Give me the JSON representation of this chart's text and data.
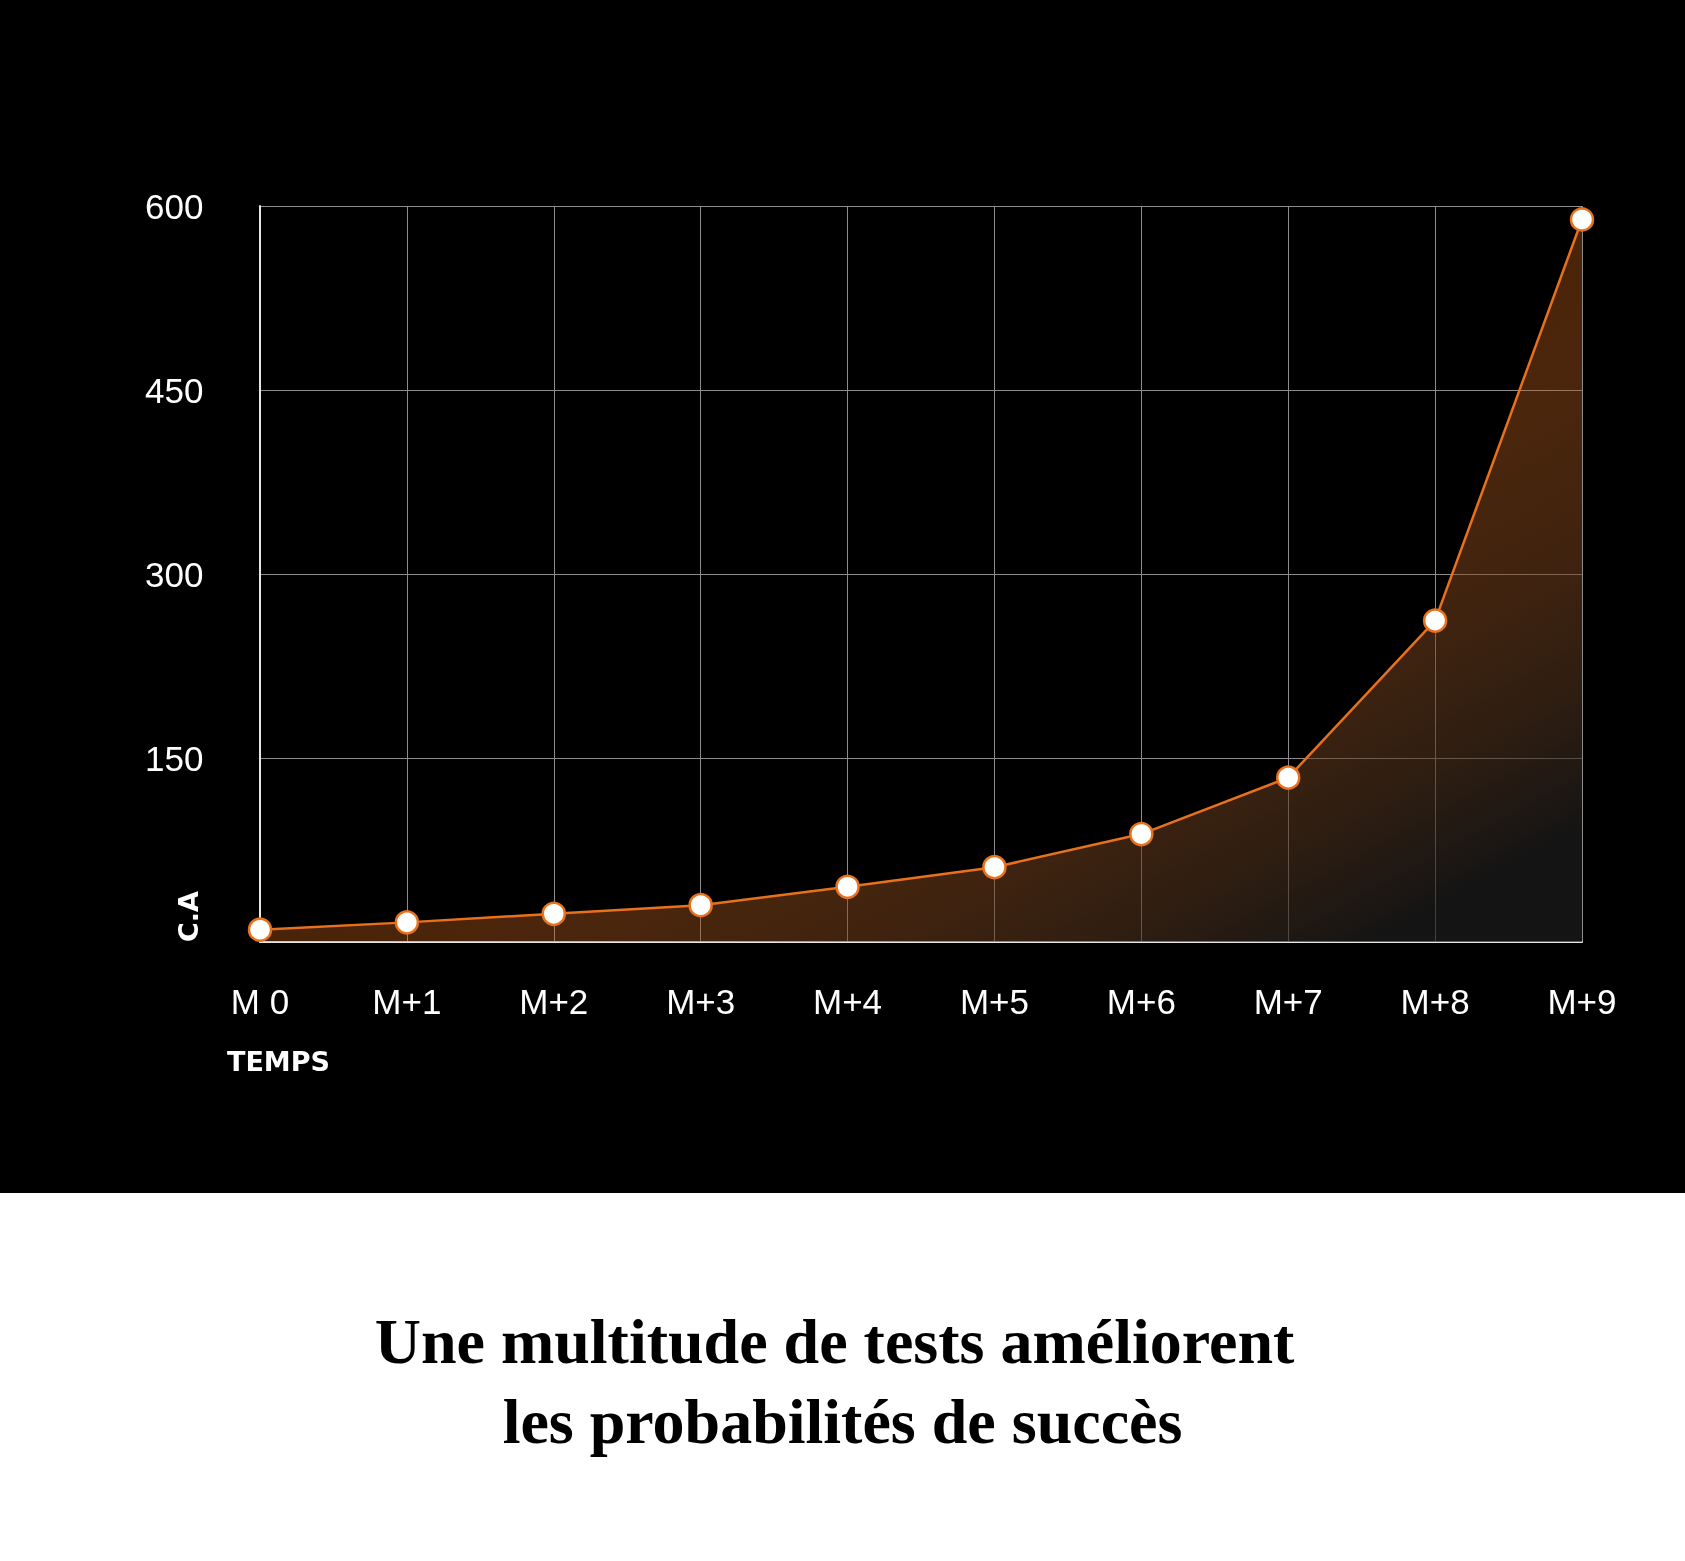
{
  "chart_data": {
    "type": "area",
    "title": "Une multitude de tests améliorent les probabilités de succès",
    "xlabel": "TEMPS",
    "ylabel": "C.A",
    "categories": [
      "M 0",
      "M+1",
      "M+2",
      "M+3",
      "M+4",
      "M+5",
      "M+6",
      "M+7",
      "M+8",
      "M+9"
    ],
    "values": [
      10,
      16,
      23,
      30,
      45,
      61,
      88,
      134,
      262,
      589
    ],
    "color": "#e8711c",
    "ylim": [
      0,
      600
    ],
    "yticks": [
      150,
      300,
      450,
      600
    ],
    "grid": true,
    "marker": "circle",
    "line_style": "solid"
  }
}
